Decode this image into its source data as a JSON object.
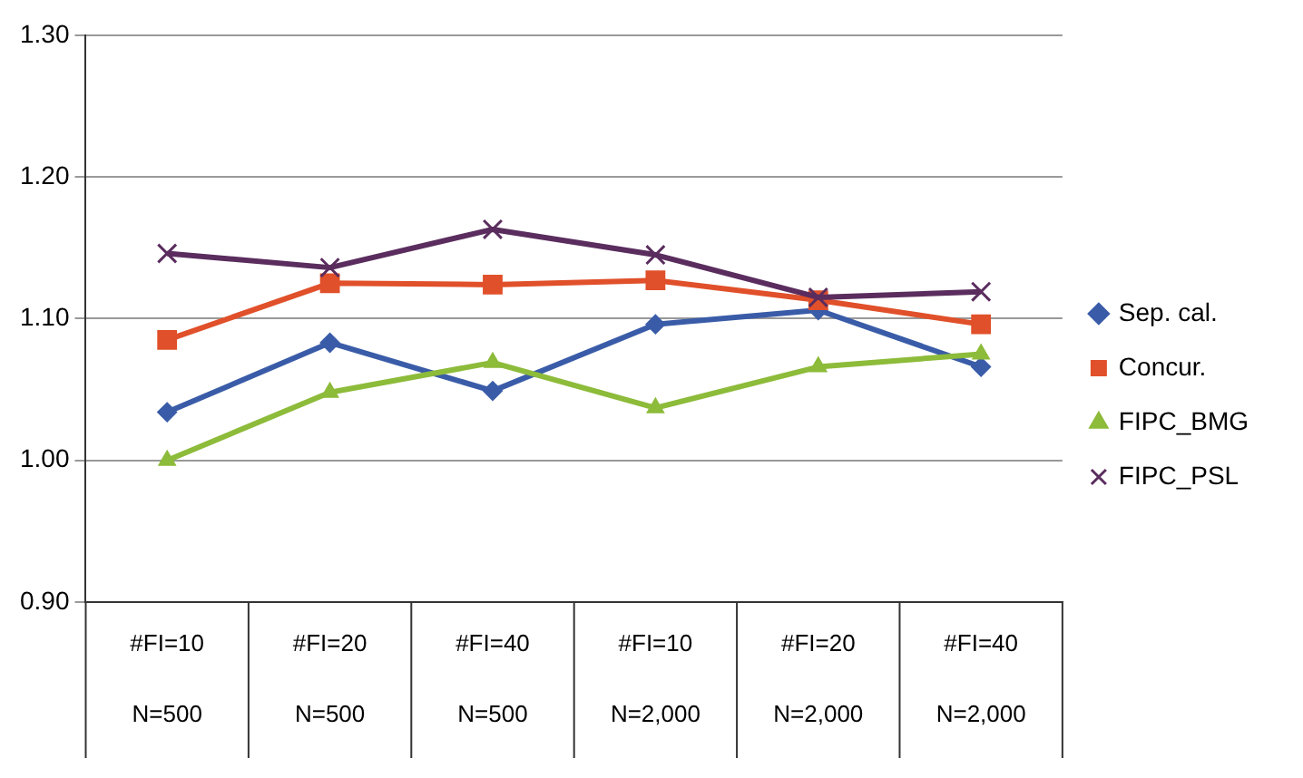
{
  "chart_data": {
    "type": "line",
    "categories": [
      "#FI=10\nN=500",
      "#FI=20\nN=500",
      "#FI=40\nN=500",
      "#FI=10\nN=2,000",
      "#FI=20\nN=2,000",
      "#FI=40\nN=2,000"
    ],
    "series": [
      {
        "name": "Sep. cal.",
        "color": "#3a5ca8",
        "marker": "diamond",
        "values": [
          1.034,
          1.083,
          1.049,
          1.096,
          1.106,
          1.066
        ]
      },
      {
        "name": "Concur.",
        "color": "#e0502a",
        "marker": "square",
        "values": [
          1.085,
          1.125,
          1.124,
          1.127,
          1.113,
          1.096
        ]
      },
      {
        "name": "FIPC_BMG",
        "color": "#8dbb3a",
        "marker": "triangle",
        "values": [
          1.0,
          1.048,
          1.069,
          1.037,
          1.066,
          1.075
        ]
      },
      {
        "name": "FIPC_PSL",
        "color": "#5a2d5e",
        "marker": "cross",
        "values": [
          1.146,
          1.136,
          1.163,
          1.145,
          1.115,
          1.119
        ]
      }
    ],
    "ylim": [
      0.9,
      1.3
    ],
    "yticks": [
      {
        "value": 0.9,
        "label": "0.90"
      },
      {
        "value": 1.0,
        "label": "1.00"
      },
      {
        "value": 1.1,
        "label": "1.10"
      },
      {
        "value": 1.2,
        "label": "1.20"
      },
      {
        "value": 1.3,
        "label": "1.30"
      }
    ],
    "grid": "y",
    "legend": "right",
    "line_style": "solid"
  }
}
